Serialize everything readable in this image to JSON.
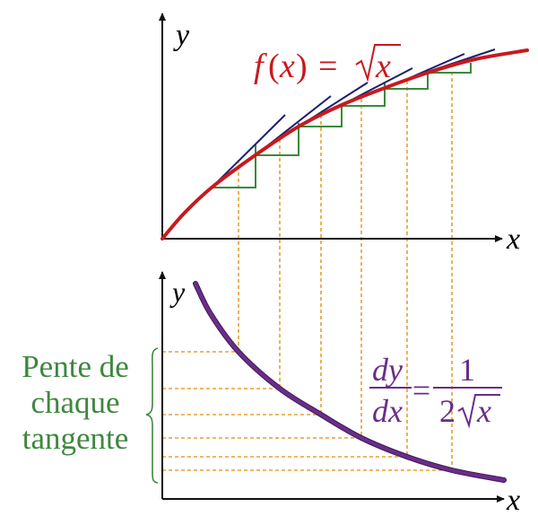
{
  "top_graph": {
    "y_axis_label": "y",
    "x_axis_label": "x",
    "function_label": {
      "f": "f",
      "open": "(",
      "x": "x",
      "close": ")",
      "equals": "=",
      "radicand": "x"
    }
  },
  "bottom_graph": {
    "y_axis_label": "y",
    "x_axis_label": "x",
    "derivative_label": {
      "num": "dy",
      "den": "dx",
      "equals": "=",
      "rhs_num": "1",
      "rhs_den_coef": "2",
      "rhs_den_radicand": "x"
    }
  },
  "annotation": {
    "lines": [
      "Pente de",
      "chaque",
      "tangente"
    ]
  },
  "colors": {
    "function_curve": "#c8191e",
    "tangent_lines": "#1b1f6e",
    "slope_steps": "#3a8a3a",
    "guide_lines": "#e8a030",
    "derivative_curve": "#6a2d8a",
    "annotation_text": "#3e873e"
  }
}
